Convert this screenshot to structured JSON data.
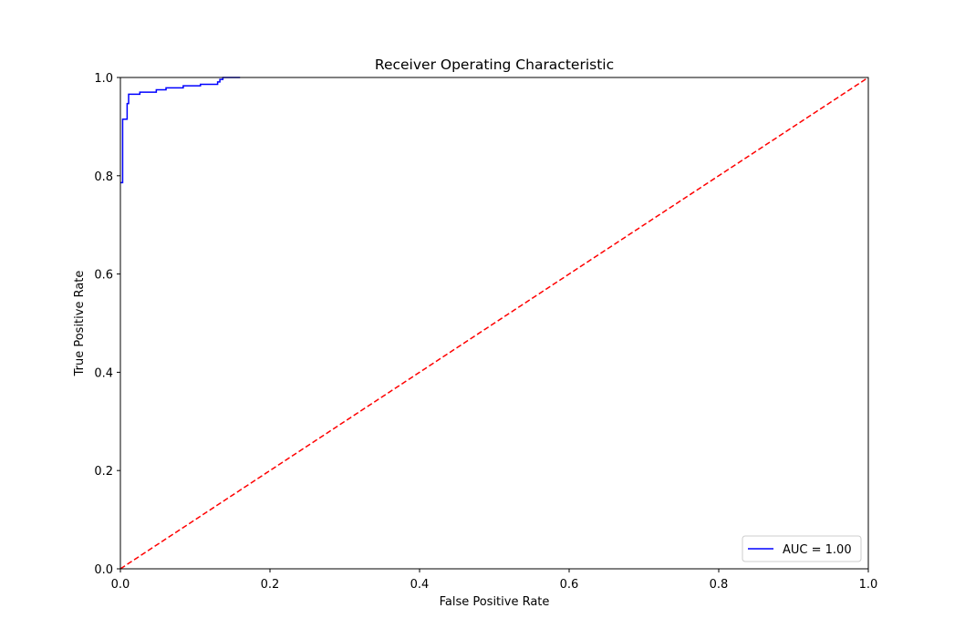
{
  "chart_data": {
    "type": "line",
    "title": "Receiver Operating Characteristic",
    "xlabel": "False Positive Rate",
    "ylabel": "True Positive Rate",
    "xlim": [
      0.0,
      1.0
    ],
    "ylim": [
      0.0,
      1.0
    ],
    "xticks": [
      "0.0",
      "0.2",
      "0.4",
      "0.6",
      "0.8",
      "1.0"
    ],
    "yticks": [
      "0.0",
      "0.2",
      "0.4",
      "0.6",
      "0.8",
      "1.0"
    ],
    "grid": false,
    "legend_position": "lower-right",
    "series": [
      {
        "name": "AUC = 1.00",
        "color": "#0000ff",
        "style": "solid",
        "x": [
          0.0,
          0.0,
          0.003,
          0.003,
          0.009,
          0.009,
          0.011,
          0.011,
          0.026,
          0.026,
          0.048,
          0.048,
          0.061,
          0.061,
          0.084,
          0.084,
          0.107,
          0.107,
          0.13,
          0.13,
          0.133,
          0.133,
          0.137,
          0.137,
          0.16
        ],
        "y": [
          0.786,
          0.786,
          0.786,
          0.915,
          0.915,
          0.947,
          0.947,
          0.966,
          0.966,
          0.97,
          0.97,
          0.975,
          0.975,
          0.979,
          0.979,
          0.983,
          0.983,
          0.986,
          0.986,
          0.991,
          0.991,
          0.996,
          0.996,
          1.0,
          1.0
        ]
      },
      {
        "color": "#ff0000",
        "style": "dashed",
        "x": [
          0.0,
          1.0
        ],
        "y": [
          0.0,
          1.0
        ]
      }
    ]
  }
}
